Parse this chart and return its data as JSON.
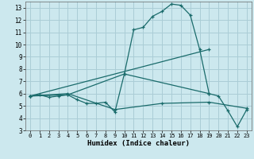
{
  "xlabel": "Humidex (Indice chaleur)",
  "bg_color": "#cce8ee",
  "grid_color": "#aacdd6",
  "line_color": "#1a6b6b",
  "xlim": [
    -0.5,
    23.5
  ],
  "ylim": [
    3,
    13.5
  ],
  "yticks": [
    3,
    4,
    5,
    6,
    7,
    8,
    9,
    10,
    11,
    12,
    13
  ],
  "xticks": [
    0,
    1,
    2,
    3,
    4,
    5,
    6,
    7,
    8,
    9,
    10,
    11,
    12,
    13,
    14,
    15,
    16,
    17,
    18,
    19,
    20,
    21,
    22,
    23
  ],
  "series": [
    {
      "x": [
        0,
        1,
        2,
        3,
        4,
        5,
        6,
        7,
        8,
        9,
        10,
        11,
        12,
        13,
        14,
        15,
        16,
        17,
        18,
        19,
        20,
        21,
        22,
        23
      ],
      "y": [
        5.8,
        5.9,
        5.7,
        5.8,
        5.9,
        5.5,
        5.2,
        5.2,
        5.3,
        4.5,
        7.6,
        11.2,
        11.4,
        12.3,
        12.7,
        13.3,
        13.2,
        12.4,
        9.6,
        6.0,
        5.8,
        4.6,
        3.3,
        4.7
      ]
    },
    {
      "x": [
        0,
        4,
        10,
        19
      ],
      "y": [
        5.8,
        5.9,
        7.6,
        6.0
      ]
    },
    {
      "x": [
        0,
        4,
        9,
        14,
        19,
        23
      ],
      "y": [
        5.8,
        6.0,
        4.7,
        5.2,
        5.3,
        4.8
      ]
    },
    {
      "x": [
        0,
        19
      ],
      "y": [
        5.8,
        9.6
      ]
    }
  ]
}
